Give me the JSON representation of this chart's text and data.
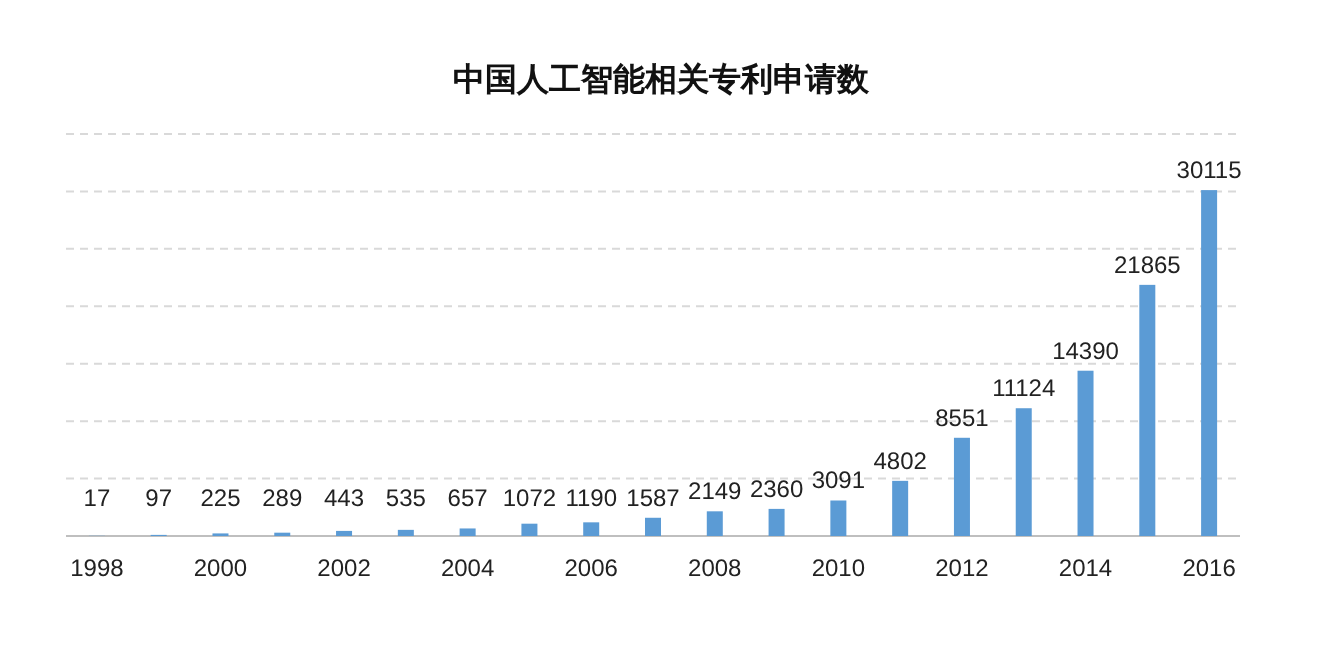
{
  "chart_data": {
    "type": "bar",
    "title": "中国人工智能相关专利申请数",
    "categories": [
      "1998",
      null,
      "2000",
      null,
      "2002",
      null,
      "2004",
      null,
      "2006",
      null,
      "2008",
      null,
      "2010",
      null,
      "2012",
      null,
      "2014",
      null,
      "2016"
    ],
    "values": [
      17,
      97,
      225,
      289,
      443,
      535,
      657,
      1072,
      1190,
      1587,
      2149,
      2360,
      3091,
      4802,
      8551,
      11124,
      14390,
      21865,
      30115
    ],
    "color": "#5b9bd5",
    "data_labels": true,
    "ylim": [
      0,
      35000
    ],
    "yticks": [
      {
        "value": 0,
        "label": null
      },
      {
        "value": 5000,
        "label": null
      },
      {
        "value": 10000,
        "label": null
      },
      {
        "value": 15000,
        "label": null
      },
      {
        "value": 20000,
        "label": null
      },
      {
        "value": 25000,
        "label": null
      },
      {
        "value": 30000,
        "label": null
      },
      {
        "value": 35000,
        "label": null
      }
    ],
    "grid": "y",
    "tick_labels": "x"
  }
}
